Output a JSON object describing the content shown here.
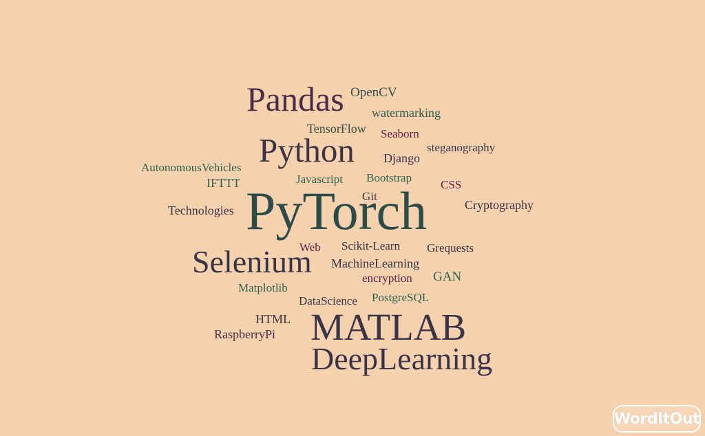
{
  "cloud": {
    "words": [
      {
        "text": "Pandas",
        "color": "#4b2d4a"
      },
      {
        "text": "OpenCV",
        "color": "#2e5148"
      },
      {
        "text": "watermarking",
        "color": "#2d5a4a"
      },
      {
        "text": "TensorFlow",
        "color": "#2f4d46"
      },
      {
        "text": "Seaborn",
        "color": "#5b1f47"
      },
      {
        "text": "Python",
        "color": "#3b3447"
      },
      {
        "text": "steganography",
        "color": "#3a3448"
      },
      {
        "text": "Django",
        "color": "#3a3448"
      },
      {
        "text": "AutonomousVehicles",
        "color": "#2d6450"
      },
      {
        "text": "IFTTT",
        "color": "#2d6450"
      },
      {
        "text": "Javascript",
        "color": "#2d6450"
      },
      {
        "text": "Bootstrap",
        "color": "#2d6450"
      },
      {
        "text": "CSS",
        "color": "#5b1f47"
      },
      {
        "text": "Git",
        "color": "#3a3448"
      },
      {
        "text": "Cryptography",
        "color": "#3a3448"
      },
      {
        "text": "Technologies",
        "color": "#3a3448"
      },
      {
        "text": "PyTorch",
        "color": "#2c4c4a"
      },
      {
        "text": "Web",
        "color": "#5b1f47"
      },
      {
        "text": "Scikit-Learn",
        "color": "#3a3448"
      },
      {
        "text": "Grequests",
        "color": "#3a3448"
      },
      {
        "text": "Selenium",
        "color": "#3a3448"
      },
      {
        "text": "MachineLearning",
        "color": "#3a3448"
      },
      {
        "text": "encryption",
        "color": "#5b1f47"
      },
      {
        "text": "GAN",
        "color": "#2d6450"
      },
      {
        "text": "Matplotlib",
        "color": "#2d6450"
      },
      {
        "text": "DataScience",
        "color": "#3a3448"
      },
      {
        "text": "PostgreSQL",
        "color": "#2d6450"
      },
      {
        "text": "HTML",
        "color": "#3a3448"
      },
      {
        "text": "MATLAB",
        "color": "#3a3448"
      },
      {
        "text": "RaspberryPi",
        "color": "#4b2d4a"
      },
      {
        "text": "DeepLearning",
        "color": "#3a3448"
      }
    ]
  },
  "branding": {
    "logo_text": "WordItOut"
  }
}
